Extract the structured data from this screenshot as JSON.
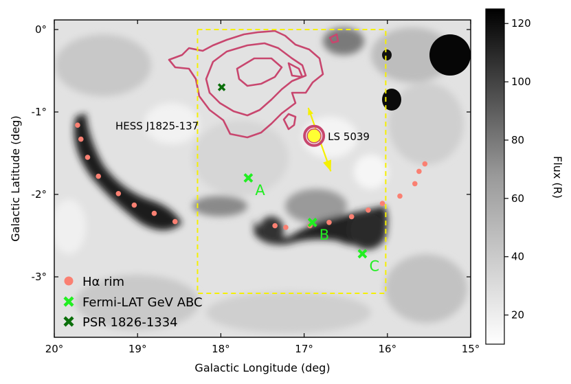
{
  "chart_data": {
    "type": "scatter",
    "xlabel": "Galactic Longitude (deg)",
    "ylabel": "Galactic Latitude (deg)",
    "xlim": [
      20,
      15
    ],
    "ylim": [
      -3.7,
      0.1
    ],
    "xticks": [
      {
        "value": 20,
        "label": "20°"
      },
      {
        "value": 19,
        "label": "19°"
      },
      {
        "value": 18,
        "label": "18°"
      },
      {
        "value": 17,
        "label": "17°"
      },
      {
        "value": 16,
        "label": "16°"
      },
      {
        "value": 15,
        "label": "15°"
      }
    ],
    "yticks": [
      {
        "value": 0,
        "label": "0°"
      },
      {
        "value": -1,
        "label": "-1°"
      },
      {
        "value": -2,
        "label": "-2°"
      },
      {
        "value": -3,
        "label": "-3°"
      }
    ],
    "background_map": "H-alpha flux, grayscale (white low, black high)",
    "colorbar": {
      "label": "Flux (R)",
      "range": [
        10,
        125
      ],
      "ticks": [
        {
          "value": 20,
          "label": "20"
        },
        {
          "value": 40,
          "label": "40"
        },
        {
          "value": 60,
          "label": "60"
        },
        {
          "value": 80,
          "label": "80"
        },
        {
          "value": 100,
          "label": "100"
        },
        {
          "value": 120,
          "label": "120"
        }
      ]
    },
    "legend": {
      "placement": "lower-left",
      "entries": [
        {
          "label": "Hα rim",
          "marker": "circle",
          "color": "#fa8072"
        },
        {
          "label": "Fermi-LAT GeV ABC",
          "marker": "x",
          "color": "#22ee22"
        },
        {
          "label": "PSR 1826-1334",
          "marker": "x",
          "color": "#0a6e0a"
        }
      ]
    },
    "series": [
      {
        "name": "Hα rim",
        "color": "#fa8072",
        "points": [
          [
            19.72,
            -1.16
          ],
          [
            19.68,
            -1.33
          ],
          [
            19.6,
            -1.55
          ],
          [
            19.47,
            -1.78
          ],
          [
            19.23,
            -1.99
          ],
          [
            19.04,
            -2.13
          ],
          [
            18.8,
            -2.23
          ],
          [
            18.55,
            -2.33
          ],
          [
            17.35,
            -2.38
          ],
          [
            17.22,
            -2.4
          ],
          [
            16.93,
            -2.38
          ],
          [
            16.7,
            -2.34
          ],
          [
            16.43,
            -2.27
          ],
          [
            16.23,
            -2.19
          ],
          [
            16.06,
            -2.11
          ],
          [
            15.85,
            -2.02
          ],
          [
            15.67,
            -1.87
          ],
          [
            15.62,
            -1.72
          ],
          [
            15.55,
            -1.63
          ]
        ]
      },
      {
        "name": "Fermi-LAT GeV ABC",
        "color": "#22ee22",
        "points": [
          {
            "x": 17.67,
            "y": -1.8,
            "label": "A"
          },
          {
            "x": 16.9,
            "y": -2.34,
            "label": "B"
          },
          {
            "x": 16.3,
            "y": -2.72,
            "label": "C"
          }
        ]
      },
      {
        "name": "PSR 1826-1334",
        "color": "#0a6e0a",
        "points": [
          {
            "x": 17.99,
            "y": -0.7
          }
        ]
      }
    ],
    "annotations": {
      "box": {
        "x": [
          18.28,
          16.02
        ],
        "y": [
          0.0,
          -3.2
        ],
        "color": "#f5f000",
        "style": "dashed"
      },
      "source": {
        "label": "LS 5039",
        "x": 16.88,
        "y": -1.29,
        "color": "#ffff33",
        "ring": "#c8466e"
      },
      "arrow": {
        "from": [
          16.95,
          -0.95
        ],
        "to": [
          16.68,
          -1.72
        ],
        "color": "#f5f000"
      },
      "hess_label": {
        "text": "HESS J1825-137",
        "x": 17.48,
        "y": -1.17
      },
      "contour_color": "#c8466e"
    }
  }
}
